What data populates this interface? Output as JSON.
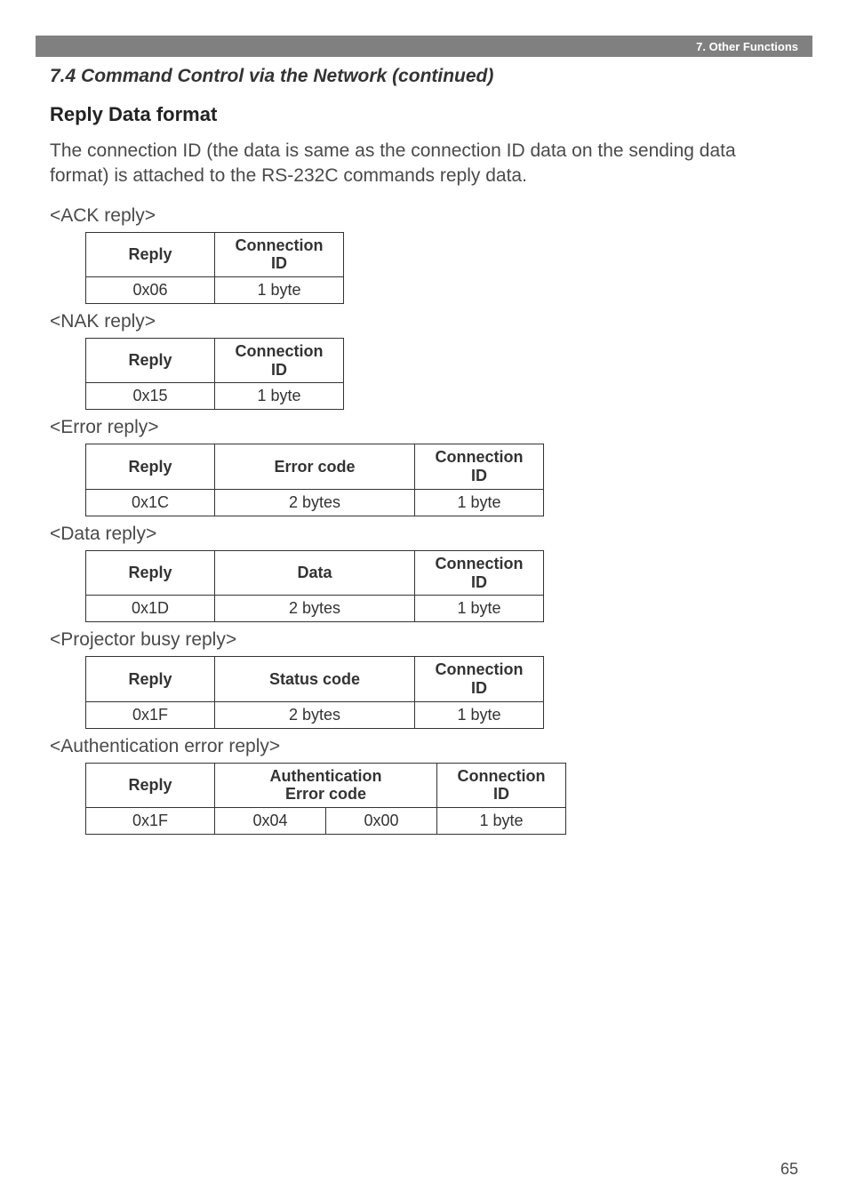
{
  "banner": {
    "text": "7. Other Functions"
  },
  "section_title": "7.4 Command Control via the Network (continued)",
  "sub_heading": "Reply Data format",
  "intro_text": "The connection ID (the data is same as the connection ID data on the sending data format) is attached to the RS-232C commands reply data.",
  "page_number": "65",
  "ack": {
    "label": "<ACK reply>",
    "headers": {
      "reply": "Reply",
      "conn": "Connection\nID"
    },
    "row": {
      "reply": "0x06",
      "conn": "1 byte"
    }
  },
  "nak": {
    "label": "<NAK reply>",
    "headers": {
      "reply": "Reply",
      "conn": "Connection\nID"
    },
    "row": {
      "reply": "0x15",
      "conn": "1 byte"
    }
  },
  "error": {
    "label": "<Error reply>",
    "headers": {
      "reply": "Reply",
      "code": "Error code",
      "conn": "Connection\nID"
    },
    "row": {
      "reply": "0x1C",
      "code": "2 bytes",
      "conn": "1 byte"
    }
  },
  "data": {
    "label": "<Data reply>",
    "headers": {
      "reply": "Reply",
      "data": "Data",
      "conn": "Connection\nID"
    },
    "row": {
      "reply": "0x1D",
      "data": "2 bytes",
      "conn": "1 byte"
    }
  },
  "busy": {
    "label": "<Projector busy reply>",
    "headers": {
      "reply": "Reply",
      "status": "Status code",
      "conn": "Connection\nID"
    },
    "row": {
      "reply": "0x1F",
      "status": "2 bytes",
      "conn": "1 byte"
    }
  },
  "auth": {
    "label": "<Authentication error reply>",
    "headers": {
      "reply": "Reply",
      "auth": "Authentication\nError code",
      "conn": "Connection\nID"
    },
    "row": {
      "reply": "0x1F",
      "auth1": "0x04",
      "auth2": "0x00",
      "conn": "1 byte"
    }
  }
}
